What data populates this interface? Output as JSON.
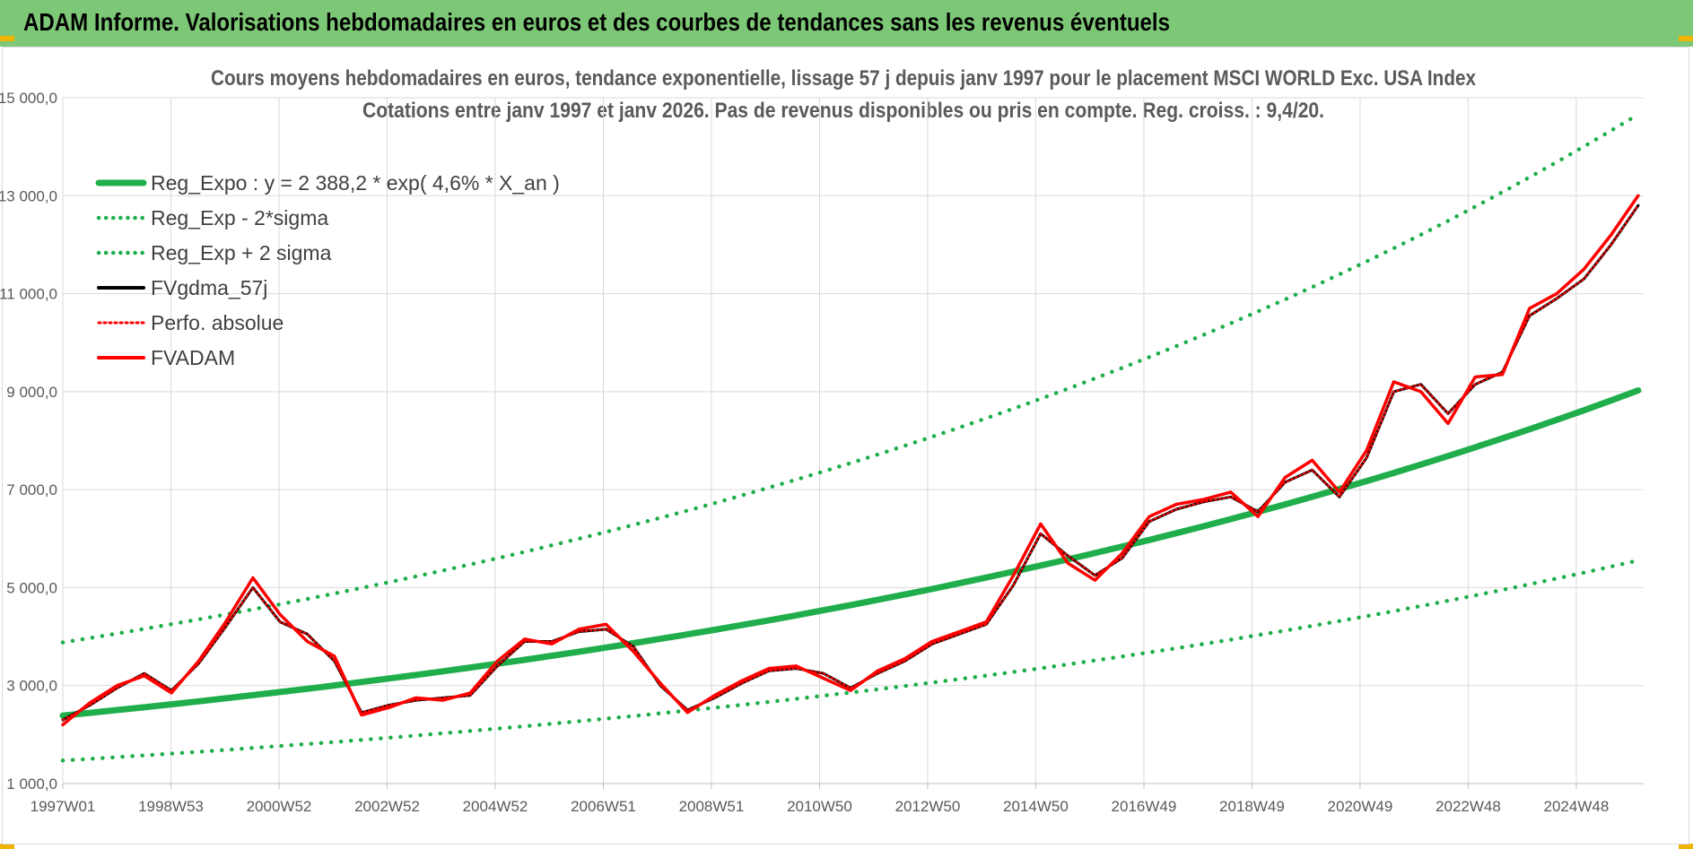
{
  "header": {
    "title": "ADAM Informe. Valorisations hebdomadaires en euros et des courbes de tendances sans les revenus éventuels"
  },
  "chart_data": {
    "type": "line",
    "title": "Cours moyens hebdomadaires en euros, tendance exponentielle, lissage 57 j depuis janv 1997 pour le placement MSCI WORLD Exc. USA Index",
    "subtitle": "Cotations entre janv 1997 et janv 2026. Pas de revenus disponibles ou pris en compte. Reg. croiss. : 9,4/20.",
    "xlabel": "",
    "ylabel": "",
    "ylim": [
      1000,
      15000
    ],
    "yticks": [
      "1 000,0",
      "3 000,0",
      "5 000,0",
      "7 000,0",
      "9 000,0",
      "11 000,0",
      "13 000,0",
      "15 000,0"
    ],
    "xticks": [
      "1997W01",
      "1998W53",
      "2000W52",
      "2002W52",
      "2004W52",
      "2006W51",
      "2008W51",
      "2010W50",
      "2012W50",
      "2014W50",
      "2016W49",
      "2018W49",
      "2020W49",
      "2022W48",
      "2024W48"
    ],
    "xlim": [
      1997.0,
      2026.1
    ],
    "grid": true,
    "legend_position": "top-left",
    "x": [
      1997.0,
      1997.5,
      1998.0,
      1998.5,
      1999.0,
      1999.5,
      2000.0,
      2000.5,
      2001.0,
      2001.5,
      2002.0,
      2002.5,
      2003.0,
      2003.5,
      2004.0,
      2004.5,
      2005.0,
      2005.5,
      2006.0,
      2006.5,
      2007.0,
      2007.5,
      2008.0,
      2008.5,
      2009.0,
      2009.5,
      2010.0,
      2010.5,
      2011.0,
      2011.5,
      2012.0,
      2012.5,
      2013.0,
      2013.5,
      2014.0,
      2014.5,
      2015.0,
      2015.5,
      2016.0,
      2016.5,
      2017.0,
      2017.5,
      2018.0,
      2018.5,
      2019.0,
      2019.5,
      2020.0,
      2020.5,
      2021.0,
      2021.5,
      2022.0,
      2022.5,
      2023.0,
      2023.5,
      2024.0,
      2024.5,
      2025.0,
      2025.5,
      2026.0
    ],
    "series": [
      {
        "name": "Reg_Expo : y = 2 388,2 * exp( 4,6% * X_an )",
        "color": "#1fae4b",
        "style": "solid",
        "values": [
          2388,
          2444,
          2500,
          2558,
          2617,
          2678,
          2740,
          2804,
          2869,
          2935,
          3003,
          3073,
          3144,
          3217,
          3291,
          3368,
          3446,
          3526,
          3607,
          3691,
          3777,
          3864,
          3954,
          4045,
          4139,
          4235,
          4333,
          4434,
          4537,
          4642,
          4750,
          4860,
          4972,
          5088,
          5206,
          5326,
          5450,
          5576,
          5705,
          5838,
          5973,
          6112,
          6253,
          6398,
          6547,
          6698,
          6854,
          7013,
          7175,
          7342,
          7512,
          7686,
          7865,
          8047,
          8233,
          8424,
          8619,
          8820,
          9025
        ]
      },
      {
        "name": "Reg_Exp - 2*sigma",
        "color": "#1fae4b",
        "style": "dotted",
        "values": [
          1470,
          1504,
          1539,
          1575,
          1611,
          1648,
          1686,
          1726,
          1766,
          1807,
          1848,
          1891,
          1935,
          1980,
          2026,
          2073,
          2121,
          2170,
          2220,
          2272,
          2325,
          2378,
          2434,
          2490,
          2548,
          2607,
          2667,
          2729,
          2793,
          2857,
          2924,
          2991,
          3061,
          3132,
          3204,
          3278,
          3354,
          3432,
          3512,
          3593,
          3677,
          3762,
          3849,
          3938,
          4030,
          4123,
          4219,
          4317,
          4417,
          4519,
          4624,
          4731,
          4841,
          4953,
          5068,
          5185,
          5305,
          5429,
          5555
        ]
      },
      {
        "name": "Reg_Exp + 2 sigma",
        "color": "#1fae4b",
        "style": "dotted",
        "values": [
          3880,
          3970,
          4062,
          4156,
          4253,
          4351,
          4452,
          4556,
          4661,
          4769,
          4880,
          4993,
          5109,
          5227,
          5348,
          5472,
          5599,
          5729,
          5862,
          5997,
          6136,
          6279,
          6424,
          6573,
          6725,
          6881,
          7041,
          7204,
          7371,
          7542,
          7717,
          7896,
          8079,
          8266,
          8458,
          8654,
          8855,
          9060,
          9270,
          9485,
          9705,
          9930,
          10160,
          10396,
          10637,
          10883,
          11135,
          11394,
          11658,
          11928,
          12204,
          12487,
          12777,
          13073,
          13376,
          13686,
          14004,
          14328,
          14660
        ]
      },
      {
        "name": "FVgdma_57j",
        "color": "#000000",
        "style": "solid",
        "values": [
          2300,
          2600,
          2950,
          3250,
          2900,
          3450,
          4200,
          5000,
          4300,
          4050,
          3500,
          2450,
          2600,
          2700,
          2750,
          2800,
          3400,
          3900,
          3900,
          4100,
          4150,
          3800,
          3000,
          2500,
          2750,
          3050,
          3300,
          3350,
          3250,
          2950,
          3250,
          3500,
          3850,
          4050,
          4250,
          5050,
          6100,
          5650,
          5250,
          5600,
          6350,
          6600,
          6750,
          6850,
          6550,
          7150,
          7400,
          6850,
          7650,
          9000,
          9150,
          8550,
          9150,
          9400,
          10550,
          10900,
          11300,
          12000,
          12800
        ]
      },
      {
        "name": "Perfo. absolue",
        "color": "#ff0000",
        "style": "dotted",
        "values": [
          2300,
          2600,
          2950,
          3250,
          2900,
          3450,
          4200,
          5000,
          4300,
          4050,
          3500,
          2450,
          2600,
          2700,
          2750,
          2800,
          3400,
          3900,
          3900,
          4100,
          4150,
          3800,
          3000,
          2500,
          2750,
          3050,
          3300,
          3350,
          3250,
          2950,
          3250,
          3500,
          3850,
          4050,
          4250,
          5050,
          6100,
          5650,
          5250,
          5600,
          6350,
          6600,
          6750,
          6850,
          6550,
          7150,
          7400,
          6850,
          7650,
          9000,
          9150,
          8550,
          9150,
          9400,
          10550,
          10900,
          11300,
          12000,
          12800
        ]
      },
      {
        "name": "FVADAM",
        "color": "#ff0000",
        "style": "solid",
        "values": [
          2200,
          2650,
          3000,
          3200,
          2850,
          3500,
          4300,
          5200,
          4450,
          3900,
          3600,
          2400,
          2550,
          2750,
          2700,
          2850,
          3500,
          3950,
          3850,
          4150,
          4250,
          3700,
          3050,
          2450,
          2800,
          3100,
          3350,
          3400,
          3150,
          2900,
          3300,
          3550,
          3900,
          4100,
          4300,
          5250,
          6300,
          5500,
          5150,
          5700,
          6450,
          6700,
          6800,
          6950,
          6450,
          7250,
          7600,
          6950,
          7800,
          9200,
          9000,
          8350,
          9300,
          9350,
          10700,
          11000,
          11500,
          12200,
          13000
        ]
      }
    ]
  }
}
